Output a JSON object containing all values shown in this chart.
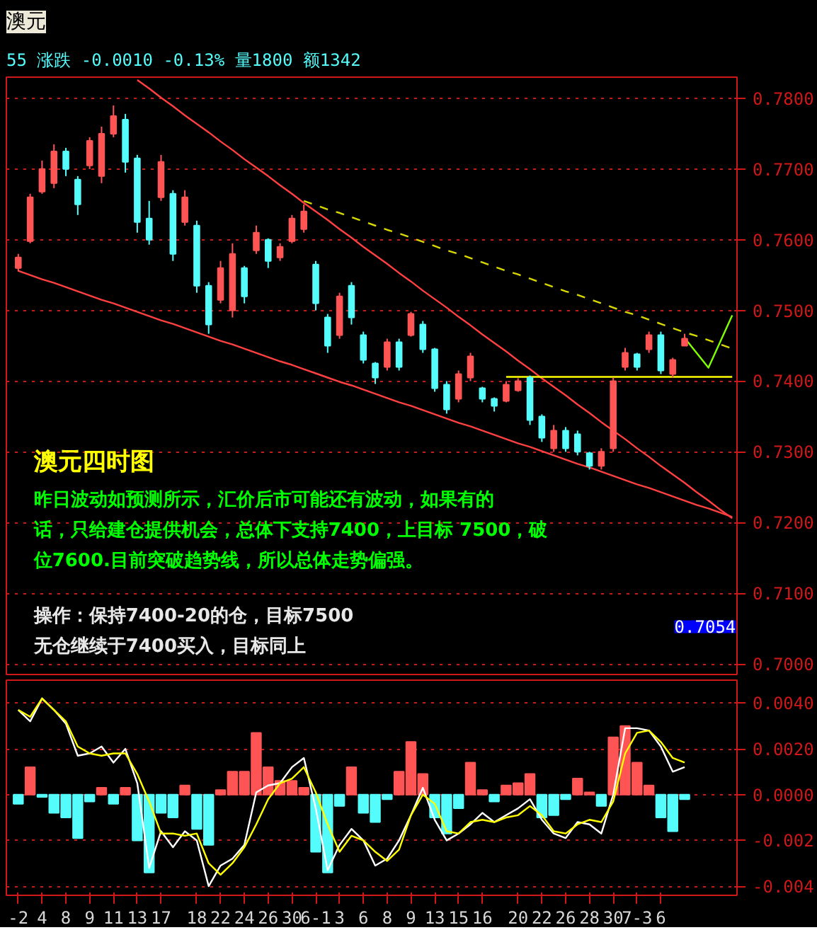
{
  "chart_data": [
    {
      "type": "candlestick",
      "title": "澳元",
      "subtitle": "55 涨跌  -0.0010 -0.13% 量1800 额1342",
      "categories": [
        null,
        null,
        null,
        null,
        null,
        null,
        null,
        null,
        null,
        null,
        null,
        null,
        null,
        null,
        null,
        null,
        null,
        null,
        null,
        null,
        null,
        null,
        null,
        null,
        null,
        null,
        null,
        null,
        null,
        null,
        null,
        null,
        null,
        null,
        null,
        null,
        null,
        null,
        null,
        null,
        null,
        null,
        null,
        null,
        null,
        null,
        null,
        null,
        null,
        null,
        null,
        null,
        null,
        null,
        null,
        null,
        null,
        null,
        null,
        null,
        null
      ],
      "ohlc": [
        [
          0.756,
          0.758,
          0.7555,
          0.7575
        ],
        [
          0.7598,
          0.7665,
          0.7595,
          0.766
        ],
        [
          0.7668,
          0.7712,
          0.7665,
          0.77
        ],
        [
          0.768,
          0.7735,
          0.7673,
          0.7725
        ],
        [
          0.7725,
          0.773,
          0.769,
          0.77
        ],
        [
          0.7685,
          0.769,
          0.7635,
          0.765
        ],
        [
          0.7705,
          0.7745,
          0.77,
          0.774
        ],
        [
          0.769,
          0.776,
          0.768,
          0.775
        ],
        [
          0.775,
          0.779,
          0.7745,
          0.7775
        ],
        [
          0.777,
          0.7778,
          0.7695,
          0.771
        ],
        [
          0.7715,
          0.772,
          0.761,
          0.7625
        ],
        [
          0.763,
          0.7655,
          0.7593,
          0.76
        ],
        [
          0.766,
          0.772,
          0.7655,
          0.771
        ],
        [
          0.7665,
          0.767,
          0.757,
          0.758
        ],
        [
          0.7625,
          0.767,
          0.762,
          0.766
        ],
        [
          0.762,
          0.7627,
          0.7525,
          0.7535
        ],
        [
          0.7535,
          0.754,
          0.7467,
          0.748
        ],
        [
          0.7515,
          0.757,
          0.751,
          0.756
        ],
        [
          0.75,
          0.7595,
          0.749,
          0.758
        ],
        [
          0.756,
          0.7563,
          0.751,
          0.752
        ],
        [
          0.7585,
          0.762,
          0.758,
          0.761
        ],
        [
          0.76,
          0.7602,
          0.756,
          0.757
        ],
        [
          0.7575,
          0.7595,
          0.757,
          0.759
        ],
        [
          0.7598,
          0.7635,
          0.7595,
          0.763
        ],
        [
          0.7615,
          0.765,
          0.761,
          0.764
        ],
        [
          0.7565,
          0.757,
          0.75,
          0.751
        ],
        [
          0.749,
          0.7495,
          0.744,
          0.745
        ],
        [
          0.7465,
          0.7525,
          0.746,
          0.752
        ],
        [
          0.7535,
          0.754,
          0.748,
          0.749
        ],
        [
          0.7465,
          0.747,
          0.7425,
          0.743
        ],
        [
          0.7425,
          0.7427,
          0.7396,
          0.7405
        ],
        [
          0.742,
          0.746,
          0.7415,
          0.7455
        ],
        [
          0.7455,
          0.746,
          0.7415,
          0.742
        ],
        [
          0.7465,
          0.7498,
          0.7463,
          0.7495
        ],
        [
          0.748,
          0.7485,
          0.744,
          0.7445
        ],
        [
          0.7445,
          0.7447,
          0.7385,
          0.739
        ],
        [
          0.7395,
          0.74,
          0.7354,
          0.736
        ],
        [
          0.7375,
          0.7415,
          0.737,
          0.741
        ],
        [
          0.7405,
          0.744,
          0.74,
          0.7435
        ],
        [
          0.739,
          0.7392,
          0.737,
          0.7375
        ],
        [
          0.7375,
          0.7377,
          0.7357,
          0.7365
        ],
        [
          0.7372,
          0.74,
          0.737,
          0.7395
        ],
        [
          0.7387,
          0.7404,
          0.7385,
          0.74
        ],
        [
          0.7405,
          0.7408,
          0.7338,
          0.7345
        ],
        [
          0.735,
          0.7353,
          0.7314,
          0.732
        ],
        [
          0.7305,
          0.7338,
          0.73,
          0.733
        ],
        [
          0.733,
          0.7335,
          0.73,
          0.7305
        ],
        [
          0.7325,
          0.733,
          0.7295,
          0.73
        ],
        [
          0.7298,
          0.73,
          0.7275,
          0.728
        ],
        [
          0.728,
          0.7305,
          0.7275,
          0.73
        ],
        [
          0.7305,
          0.7405,
          0.73,
          0.74
        ],
        [
          0.742,
          0.7447,
          0.7415,
          0.744
        ],
        [
          0.7438,
          0.744,
          0.7415,
          0.742
        ],
        [
          0.7445,
          0.747,
          0.744,
          0.7465
        ],
        [
          0.7465,
          0.747,
          0.741,
          0.7415
        ],
        [
          0.741,
          0.7433,
          0.7405,
          0.743
        ],
        [
          0.745,
          0.7467,
          0.745,
          0.746
        ],
        null,
        null,
        null,
        null
      ],
      "colors": [
        "#ff5454",
        "#ff5454",
        "#ff5454",
        "#ff5454",
        "#54fcfc",
        "#54fcfc",
        "#ff5454",
        "#ff5454",
        "#ff5454",
        "#54fcfc",
        "#54fcfc",
        "#54fcfc",
        "#ff5454",
        "#54fcfc",
        "#ff5454",
        "#54fcfc",
        "#54fcfc",
        "#ff5454",
        "#ff5454",
        "#54fcfc",
        "#ff5454",
        "#54fcfc",
        "#ff5454",
        "#ff5454",
        "#ff5454",
        "#54fcfc",
        "#54fcfc",
        "#ff5454",
        "#54fcfc",
        "#54fcfc",
        "#54fcfc",
        "#ff5454",
        "#54fcfc",
        "#ff5454",
        "#54fcfc",
        "#54fcfc",
        "#54fcfc",
        "#ff5454",
        "#ff5454",
        "#54fcfc",
        "#54fcfc",
        "#ff5454",
        "#ff5454",
        "#54fcfc",
        "#54fcfc",
        "#ff5454",
        "#54fcfc",
        "#54fcfc",
        "#54fcfc",
        "#ff5454",
        "#ff5454",
        "#ff5454",
        "#54fcfc",
        "#ff5454",
        "#54fcfc",
        "#ff5454",
        "#ff5454",
        null,
        null,
        null,
        null
      ],
      "series": [
        {
          "type": "line",
          "color": "#ff4040",
          "values": [
            null,
            null,
            null,
            null,
            null,
            null,
            null,
            null,
            null,
            null,
            0.7826,
            0.7814,
            0.7801,
            0.7789,
            0.7776,
            0.7764,
            0.7752,
            0.7739,
            0.7727,
            0.7714,
            0.7702,
            0.769,
            0.7677,
            0.7665,
            0.7652,
            0.764,
            0.7628,
            0.7615,
            0.7603,
            0.759,
            0.7578,
            0.7566,
            0.7553,
            0.7541,
            0.7528,
            0.7516,
            0.7504,
            0.7491,
            0.7479,
            0.7466,
            0.7454,
            0.7442,
            0.7429,
            0.7417,
            0.7404,
            0.7392,
            0.738,
            0.7367,
            0.7355,
            0.7342,
            0.733,
            0.7318,
            0.7305,
            0.7293,
            0.728,
            0.7268,
            0.7256,
            0.7243,
            0.7231,
            0.7218,
            0.7206
          ]
        },
        {
          "type": "line",
          "color": "#ff4040",
          "values": [
            0.7556,
            0.755,
            0.7544,
            0.7539,
            0.7533,
            0.7527,
            0.7521,
            0.7515,
            0.751,
            0.7504,
            0.7498,
            0.7492,
            0.7486,
            0.7481,
            0.7475,
            0.7469,
            0.7463,
            0.7457,
            0.7452,
            0.7446,
            0.744,
            0.7434,
            0.7428,
            0.7423,
            0.7417,
            0.7411,
            0.7405,
            0.7399,
            0.7394,
            0.7388,
            0.7382,
            0.7376,
            0.737,
            0.7365,
            0.7359,
            0.7353,
            0.7347,
            0.7341,
            0.7336,
            0.733,
            0.7324,
            0.7318,
            0.7312,
            0.7307,
            0.7301,
            0.7295,
            0.7289,
            0.7283,
            0.7278,
            0.7272,
            0.7266,
            0.726,
            0.7254,
            0.7249,
            0.7243,
            0.7237,
            0.7231,
            0.7225,
            0.722,
            0.7214,
            0.7208
          ]
        },
        {
          "type": "line",
          "color": "#d8d800",
          "line_style": "dashed",
          "values": [
            null,
            null,
            null,
            null,
            null,
            null,
            null,
            null,
            null,
            null,
            null,
            null,
            null,
            null,
            null,
            null,
            null,
            null,
            null,
            null,
            null,
            null,
            null,
            null,
            0.7655,
            0.7649,
            0.7643,
            0.7638,
            0.7632,
            0.7626,
            0.762,
            0.7614,
            0.7609,
            0.7603,
            0.7597,
            0.7591,
            0.7585,
            0.758,
            0.7574,
            0.7568,
            0.7562,
            0.7556,
            0.7551,
            0.7545,
            0.7539,
            0.7533,
            0.7527,
            0.7522,
            0.7516,
            0.751,
            0.7504,
            0.7498,
            0.7493,
            0.7487,
            0.7481,
            0.7475,
            0.7469,
            0.7464,
            0.7458,
            0.7452,
            0.7446
          ]
        },
        {
          "type": "line",
          "color": "#ffff00",
          "values": [
            null,
            null,
            null,
            null,
            null,
            null,
            null,
            null,
            null,
            null,
            null,
            null,
            null,
            null,
            null,
            null,
            null,
            null,
            null,
            null,
            null,
            null,
            null,
            null,
            null,
            null,
            null,
            null,
            null,
            null,
            null,
            null,
            null,
            null,
            null,
            null,
            null,
            null,
            null,
            null,
            null,
            0.7406,
            0.7406,
            0.7406,
            0.7406,
            0.7406,
            0.7406,
            0.7406,
            0.7406,
            0.7406,
            0.7406,
            0.7406,
            0.7406,
            0.7406,
            0.7406,
            0.7406,
            0.7406,
            0.7406,
            0.7406,
            0.7406,
            0.7406
          ]
        },
        {
          "type": "line",
          "color": "#80ff00",
          "values": [
            null,
            null,
            null,
            null,
            null,
            null,
            null,
            null,
            null,
            null,
            null,
            null,
            null,
            null,
            null,
            null,
            null,
            null,
            null,
            null,
            null,
            null,
            null,
            null,
            null,
            null,
            null,
            null,
            null,
            null,
            null,
            null,
            null,
            null,
            null,
            null,
            null,
            null,
            null,
            null,
            null,
            null,
            null,
            null,
            null,
            null,
            null,
            null,
            null,
            null,
            null,
            null,
            null,
            null,
            null,
            null,
            0.7461,
            0.744,
            0.7419,
            0.7456,
            0.7493
          ]
        }
      ],
      "ylim": [
        0.6985,
        0.783
      ],
      "yticks": [
        {
          "value": 0.7,
          "label": "0.7000"
        },
        {
          "value": 0.71,
          "label": "0.7100"
        },
        {
          "value": 0.72,
          "label": "0.7200"
        },
        {
          "value": 0.73,
          "label": "0.7300"
        },
        {
          "value": 0.74,
          "label": "0.7400"
        },
        {
          "value": 0.75,
          "label": "0.7500"
        },
        {
          "value": 0.76,
          "label": "0.7600"
        },
        {
          "value": 0.77,
          "label": "0.7700"
        },
        {
          "value": 0.78,
          "label": "0.7800"
        }
      ],
      "grid": "y",
      "tick_labels": "y",
      "annotations": [
        "澳元四时图",
        "昨日波动如预测所示，汇价后市可能还有波动，如果有的",
        "话，只给建仓提供机会，总体下支持7400，上目标 7500，破",
        "位7600.目前突破趋势线，所以总体走势偏强。",
        "操作：保持7400-20的仓，目标7500",
        "无仓继续于7400买入，目标同上",
        "0.7054"
      ]
    },
    {
      "type": "bar",
      "categories": [
        "-2",
        null,
        "4",
        null,
        "8",
        null,
        "9",
        null,
        "11",
        null,
        "13",
        null,
        "17",
        null,
        null,
        "18",
        null,
        "22",
        null,
        "24",
        null,
        "26",
        null,
        "30",
        null,
        "6-1",
        null,
        "3",
        null,
        "6",
        null,
        "8",
        null,
        "9",
        null,
        "13",
        null,
        "15",
        null,
        "16",
        null,
        null,
        "20",
        null,
        "22",
        null,
        "26",
        null,
        "28",
        null,
        "30",
        null,
        "7-3",
        null,
        "6",
        null,
        null,
        null,
        null,
        null,
        null
      ],
      "series": [
        {
          "type": "bar",
          "values": [
            -0.0004,
            0.0012,
            -0.0001,
            -0.0008,
            -0.001,
            -0.0019,
            -0.0003,
            0.0003,
            -0.0004,
            0.0003,
            -0.002,
            -0.0034,
            -0.0008,
            -0.001,
            0.0004,
            -0.0015,
            -0.0022,
            0.0002,
            0.001,
            0.001,
            0.0027,
            0.0012,
            0.0006,
            0.0006,
            0.0003,
            -0.0025,
            -0.0034,
            -0.0005,
            0.0012,
            -0.0008,
            -0.0012,
            -0.0002,
            0.001,
            0.0023,
            0.0009,
            -0.001,
            -0.0017,
            -0.0006,
            0.0014,
            0.0002,
            -0.0003,
            0.0004,
            0.0005,
            0.0009,
            -0.001,
            -0.0009,
            -0.0002,
            0.0007,
            0.0001,
            -0.0005,
            0.0025,
            0.003,
            0.0014,
            0.0004,
            -0.001,
            -0.0016,
            -0.0002,
            null,
            null,
            null,
            null
          ],
          "colors": [
            "#54fcfc",
            "#ff5454",
            "#54fcfc",
            "#54fcfc",
            "#54fcfc",
            "#54fcfc",
            "#54fcfc",
            "#ff5454",
            "#54fcfc",
            "#ff5454",
            "#54fcfc",
            "#54fcfc",
            "#54fcfc",
            "#54fcfc",
            "#ff5454",
            "#54fcfc",
            "#54fcfc",
            "#ff5454",
            "#ff5454",
            "#ff5454",
            "#ff5454",
            "#ff5454",
            "#ff5454",
            "#ff5454",
            "#ff5454",
            "#54fcfc",
            "#54fcfc",
            "#54fcfc",
            "#ff5454",
            "#54fcfc",
            "#54fcfc",
            "#54fcfc",
            "#ff5454",
            "#ff5454",
            "#ff5454",
            "#54fcfc",
            "#54fcfc",
            "#54fcfc",
            "#ff5454",
            "#ff5454",
            "#54fcfc",
            "#ff5454",
            "#ff5454",
            "#ff5454",
            "#54fcfc",
            "#54fcfc",
            "#54fcfc",
            "#ff5454",
            "#ff5454",
            "#54fcfc",
            "#ff5454",
            "#ff5454",
            "#ff5454",
            "#ff5454",
            "#54fcfc",
            "#54fcfc",
            "#54fcfc",
            null,
            null,
            null,
            null
          ]
        },
        {
          "type": "line",
          "color": "#ffffff",
          "values": [
            0.0037,
            0.0032,
            0.0042,
            0.0037,
            0.0031,
            0.0017,
            0.0018,
            0.0021,
            0.0014,
            0.002,
            0.0005,
            -0.0032,
            -0.0016,
            -0.0023,
            -0.0016,
            -0.002,
            -0.004,
            -0.0031,
            -0.0028,
            -0.0022,
            0.0001,
            0.0004,
            0.0005,
            0.0012,
            0.0016,
            -0.0006,
            -0.0033,
            -0.0022,
            -0.0015,
            -0.002,
            -0.0031,
            -0.0028,
            -0.002,
            -0.0009,
            0.0003,
            -0.0011,
            -0.002,
            -0.0017,
            -0.0013,
            -0.0008,
            -0.0012,
            -0.0009,
            -0.0006,
            -0.0002,
            -0.0011,
            -0.0017,
            -0.0019,
            -0.0012,
            -0.0013,
            -0.0017,
            0.0,
            0.0029,
            0.0029,
            0.0028,
            0.0021,
            0.001,
            0.0012,
            null,
            null,
            null,
            null
          ]
        },
        {
          "type": "line",
          "color": "#ffff00",
          "values": [
            0.0037,
            0.0034,
            0.0042,
            0.0037,
            0.0032,
            0.0021,
            0.0018,
            0.0017,
            0.0018,
            0.0018,
            0.0009,
            -0.0003,
            -0.0017,
            -0.0017,
            -0.0018,
            -0.0017,
            -0.003,
            -0.0035,
            -0.003,
            -0.0023,
            -0.0013,
            -0.0002,
            0.0005,
            0.0007,
            0.0012,
            0.0001,
            -0.0013,
            -0.0025,
            -0.0018,
            -0.002,
            -0.0025,
            -0.0029,
            -0.0024,
            -0.0009,
            0.0,
            -0.0004,
            -0.0016,
            -0.0017,
            -0.0012,
            -0.0011,
            -0.0012,
            -0.001,
            -0.0009,
            -0.0005,
            -0.0009,
            -0.0016,
            -0.0017,
            -0.0013,
            -0.0011,
            -0.0012,
            -0.0003,
            0.0018,
            0.0027,
            0.0028,
            0.0023,
            0.0016,
            0.0014,
            null,
            null,
            null,
            null
          ]
        }
      ],
      "ylim": [
        -0.0044,
        0.005
      ],
      "yticks": [
        {
          "value": -0.004,
          "label": "-0.004"
        },
        {
          "value": -0.002,
          "label": "-0.002"
        },
        {
          "value": 0.0,
          "label": "0.0000"
        },
        {
          "value": 0.002,
          "label": "0.0020"
        },
        {
          "value": 0.004,
          "label": "0.0040"
        }
      ],
      "grid": "y"
    }
  ]
}
